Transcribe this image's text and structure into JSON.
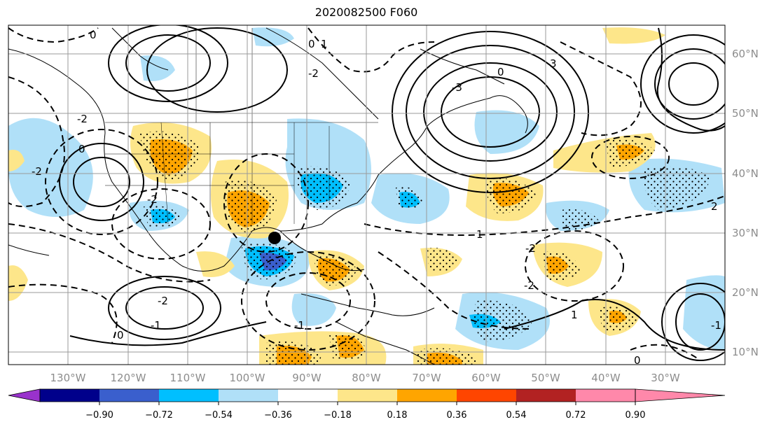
{
  "title": "2020082500 F060",
  "map": {
    "lon_ticks": [
      "130°W",
      "120°W",
      "110°W",
      "100°W",
      "90°W",
      "80°W",
      "70°W",
      "60°W",
      "50°W",
      "40°W",
      "30°W"
    ],
    "lat_ticks": [
      "60°N",
      "50°N",
      "40°N",
      "30°N",
      "20°N",
      "10°N"
    ],
    "contour_labels": [
      "0",
      "0",
      "1",
      "-2",
      "-2",
      "0",
      "1",
      "-1",
      "-2",
      "-2",
      "0",
      "-1",
      "0",
      "-3",
      "3",
      "-2",
      "0",
      "-2",
      "1",
      "-2",
      "2",
      "-1"
    ]
  },
  "colorbar": {
    "ticks": [
      "−0.90",
      "−0.72",
      "−0.54",
      "−0.36",
      "−0.18",
      "0.18",
      "0.36",
      "0.54",
      "0.72",
      "0.90"
    ],
    "colors": [
      "#9932cc",
      "#00008b",
      "#3a5fcd",
      "#00bfff",
      "#b0e0f8",
      "#ffffff",
      "#fde68a",
      "#ffa500",
      "#ff4500",
      "#b22222",
      "#ff88aa"
    ]
  }
}
